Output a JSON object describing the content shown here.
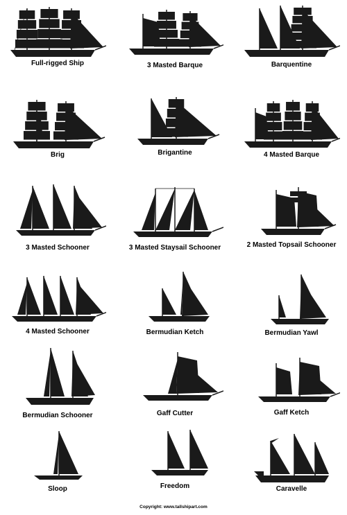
{
  "colors": {
    "silhouette": "#1a1a1a",
    "background": "#ffffff"
  },
  "vessels": [
    {
      "name": "Full-rigged Ship",
      "icon": "full-rigged-ship-icon"
    },
    {
      "name": "3 Masted Barque",
      "icon": "three-masted-barque-icon"
    },
    {
      "name": "Barquentine",
      "icon": "barquentine-icon"
    },
    {
      "name": "Brig",
      "icon": "brig-icon"
    },
    {
      "name": "Brigantine",
      "icon": "brigantine-icon"
    },
    {
      "name": "4 Masted Barque",
      "icon": "four-masted-barque-icon"
    },
    {
      "name": "3 Masted Schooner",
      "icon": "three-masted-schooner-icon"
    },
    {
      "name": "3 Masted Staysail Schooner",
      "icon": "three-masted-staysail-schooner-icon"
    },
    {
      "name": "2 Masted Topsail Schooner",
      "icon": "two-masted-topsail-schooner-icon"
    },
    {
      "name": "4 Masted Schooner",
      "icon": "four-masted-schooner-icon"
    },
    {
      "name": "Bermudian Ketch",
      "icon": "bermudian-ketch-icon"
    },
    {
      "name": "Bermudian Yawl",
      "icon": "bermudian-yawl-icon"
    },
    {
      "name": "Bermudian Schooner",
      "icon": "bermudian-schooner-icon"
    },
    {
      "name": "Gaff Cutter",
      "icon": "gaff-cutter-icon"
    },
    {
      "name": "Gaff Ketch",
      "icon": "gaff-ketch-icon"
    },
    {
      "name": "Sloop",
      "icon": "sloop-icon"
    },
    {
      "name": "Freedom",
      "icon": "freedom-icon"
    },
    {
      "name": "Caravelle",
      "icon": "caravelle-icon"
    }
  ],
  "copyright": "Copyright: www.tallshipart.com"
}
